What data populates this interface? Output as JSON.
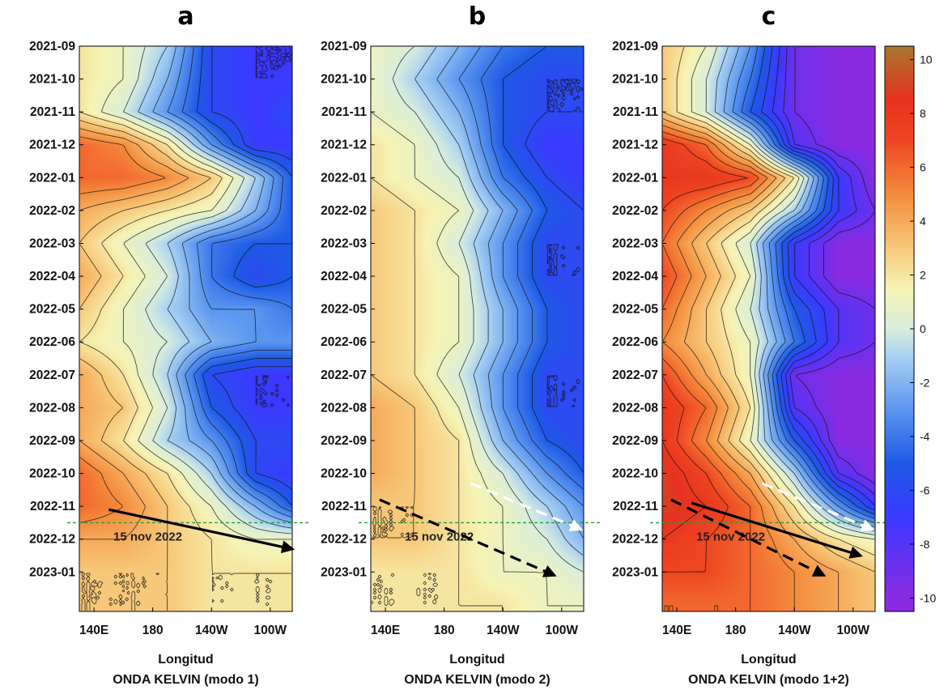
{
  "chart_data": [
    {
      "type": "heatmap",
      "panel_label": "a",
      "title": "ONDA KELVIN (modo 1)",
      "xlabel": "Longitud",
      "x_ticks": [
        "140E",
        "180",
        "140W",
        "100W"
      ],
      "y_ticks": [
        "2021-09",
        "2021-10",
        "2021-11",
        "2021-12",
        "2022-01",
        "2022-02",
        "2022-03",
        "2022-04",
        "2022-05",
        "2022-06",
        "2022-07",
        "2022-08",
        "2022-09",
        "2022-10",
        "2022-11",
        "2022-12",
        "2023-01"
      ],
      "annotation": "15 nov 2022",
      "field": {
        "lons": [
          130,
          160,
          190,
          220,
          250,
          275
        ],
        "times": [
          0,
          1,
          2,
          3,
          4,
          5,
          6,
          7,
          8,
          9,
          10,
          11,
          12,
          13,
          14,
          15,
          16,
          17
        ],
        "values": [
          [
            2,
            1,
            -1,
            -6,
            -7,
            -7
          ],
          [
            2,
            1,
            -2,
            -6,
            -7,
            -7
          ],
          [
            2,
            0,
            -3,
            -6,
            -7,
            -6
          ],
          [
            6,
            5,
            2,
            -3,
            -7,
            -7
          ],
          [
            6,
            6,
            5,
            3,
            -1,
            -5
          ],
          [
            4,
            3,
            2,
            1,
            -2,
            -5
          ],
          [
            3,
            1,
            -1,
            -4,
            -5,
            -5
          ],
          [
            4,
            2,
            0,
            -4,
            -6,
            -5
          ],
          [
            3,
            1,
            -1,
            -3,
            -3,
            -4
          ],
          [
            2,
            1,
            0,
            -2,
            -3,
            -3
          ],
          [
            4,
            2,
            -1,
            -6,
            -7,
            -7
          ],
          [
            4,
            3,
            0,
            -5,
            -7,
            -7
          ],
          [
            4,
            2,
            -1,
            -3,
            -6,
            -6
          ],
          [
            6,
            4,
            2,
            -1,
            -6,
            -7
          ],
          [
            6,
            5,
            3,
            1,
            -2,
            -5
          ],
          [
            4,
            4,
            3,
            2,
            1,
            1
          ],
          [
            3,
            3,
            3,
            2,
            2,
            2
          ],
          [
            3,
            3,
            3,
            2,
            2,
            2
          ]
        ]
      },
      "arrows": [
        {
          "style": "solid",
          "color": "#000000",
          "from": {
            "lon": 150,
            "t": 14.1
          },
          "to": {
            "lon": 275,
            "t": 15.3
          }
        }
      ]
    },
    {
      "type": "heatmap",
      "panel_label": "b",
      "title": "ONDA KELVIN (modo 2)",
      "xlabel": "Longitud",
      "x_ticks": [
        "140E",
        "180",
        "140W",
        "100W"
      ],
      "y_ticks": [
        "2021-09",
        "2021-10",
        "2021-11",
        "2021-12",
        "2022-01",
        "2022-02",
        "2022-03",
        "2022-04",
        "2022-05",
        "2022-06",
        "2022-07",
        "2022-08",
        "2022-09",
        "2022-10",
        "2022-11",
        "2022-12",
        "2023-01"
      ],
      "annotation": "15 nov 2022",
      "field": {
        "lons": [
          130,
          160,
          190,
          220,
          250,
          275
        ],
        "times": [
          0,
          1,
          2,
          3,
          4,
          5,
          6,
          7,
          8,
          9,
          10,
          11,
          12,
          13,
          14,
          15,
          16,
          17
        ],
        "values": [
          [
            1,
            0,
            -2,
            -4,
            -5,
            -5
          ],
          [
            1,
            -1,
            -3,
            -5,
            -6,
            -6
          ],
          [
            1,
            0,
            -2,
            -5,
            -6,
            -6
          ],
          [
            2,
            1,
            -1,
            -5,
            -7,
            -7
          ],
          [
            2,
            1,
            0,
            -4,
            -6,
            -7
          ],
          [
            3,
            2,
            1,
            -2,
            -5,
            -6
          ],
          [
            3,
            2,
            0,
            -3,
            -6,
            -6
          ],
          [
            3,
            2,
            1,
            -3,
            -6,
            -6
          ],
          [
            3,
            2,
            1,
            -2,
            -5,
            -6
          ],
          [
            3,
            2,
            1,
            -2,
            -5,
            -6
          ],
          [
            3,
            2,
            0,
            -3,
            -6,
            -6
          ],
          [
            4,
            3,
            1,
            -3,
            -6,
            -6
          ],
          [
            4,
            3,
            2,
            -2,
            -5,
            -6
          ],
          [
            4,
            3,
            2,
            0,
            -3,
            -5
          ],
          [
            3,
            3,
            2,
            1,
            -1,
            -3
          ],
          [
            3,
            3,
            2,
            1,
            0,
            -2
          ],
          [
            2,
            2,
            2,
            1,
            1,
            0
          ],
          [
            2,
            2,
            2,
            2,
            1,
            1
          ]
        ]
      },
      "arrows": [
        {
          "style": "dashed",
          "color": "#000000",
          "from": {
            "lon": 136,
            "t": 13.8
          },
          "to": {
            "lon": 255,
            "t": 16.1
          }
        },
        {
          "style": "dashed",
          "color": "#ffffff",
          "from": {
            "lon": 198,
            "t": 13.3
          },
          "to": {
            "lon": 273,
            "t": 14.7
          }
        }
      ]
    },
    {
      "type": "heatmap",
      "panel_label": "c",
      "title": "ONDA KELVIN (modo 1+2)",
      "xlabel": "Longitud",
      "x_ticks": [
        "140E",
        "180",
        "140W",
        "100W"
      ],
      "y_ticks": [
        "2021-09",
        "2021-10",
        "2021-11",
        "2021-12",
        "2022-01",
        "2022-02",
        "2022-03",
        "2022-04",
        "2022-05",
        "2022-06",
        "2022-07",
        "2022-08",
        "2022-09",
        "2022-10",
        "2022-11",
        "2022-12",
        "2023-01"
      ],
      "annotation": "15 nov 2022",
      "colorbar": {
        "ticks": [
          10,
          8,
          6,
          4,
          2,
          0,
          -2,
          -4,
          -6,
          -8,
          -10
        ],
        "range": [
          -10.5,
          10.5
        ],
        "stops": [
          {
            "v": -10,
            "c": "#8a2be2"
          },
          {
            "v": -7,
            "c": "#3b39ff"
          },
          {
            "v": -5,
            "c": "#1e5ae6"
          },
          {
            "v": -3,
            "c": "#5a96f0"
          },
          {
            "v": -1,
            "c": "#a9d1f2"
          },
          {
            "v": 0,
            "c": "#d9eedc"
          },
          {
            "v": 1.5,
            "c": "#f6f3b4"
          },
          {
            "v": 3,
            "c": "#f7c879"
          },
          {
            "v": 5,
            "c": "#f48b3c"
          },
          {
            "v": 7,
            "c": "#ef4622"
          },
          {
            "v": 8.5,
            "c": "#e6321f"
          },
          {
            "v": 10.5,
            "c": "#a9762e"
          }
        ]
      },
      "field": {
        "lons": [
          130,
          160,
          190,
          220,
          250,
          275
        ],
        "times": [
          0,
          1,
          2,
          3,
          4,
          5,
          6,
          7,
          8,
          9,
          10,
          11,
          12,
          13,
          14,
          15,
          16,
          17
        ],
        "values": [
          [
            3,
            1,
            -3,
            -9,
            -10,
            -10
          ],
          [
            3,
            0,
            -4,
            -9,
            -10,
            -10
          ],
          [
            3,
            0,
            -5,
            -9,
            -10,
            -10
          ],
          [
            8,
            6,
            1,
            -8,
            -10,
            -10
          ],
          [
            8,
            8,
            7,
            2,
            -7,
            -10
          ],
          [
            7,
            5,
            3,
            -1,
            -7,
            -9
          ],
          [
            6,
            3,
            0,
            -7,
            -10,
            -10
          ],
          [
            7,
            4,
            1,
            -7,
            -10,
            -10
          ],
          [
            6,
            3,
            0,
            -5,
            -8,
            -9
          ],
          [
            5,
            3,
            1,
            -4,
            -8,
            -9
          ],
          [
            7,
            4,
            1,
            -9,
            -10,
            -10
          ],
          [
            8,
            6,
            2,
            -8,
            -10,
            -10
          ],
          [
            8,
            5,
            1,
            -5,
            -10,
            -10
          ],
          [
            9,
            7,
            4,
            -1,
            -8,
            -10
          ],
          [
            9,
            8,
            6,
            2,
            -3,
            -7
          ],
          [
            8,
            7,
            6,
            4,
            2,
            1
          ],
          [
            7,
            7,
            6,
            5,
            4,
            3
          ],
          [
            6,
            6,
            6,
            5,
            4,
            3
          ]
        ]
      },
      "arrows": [
        {
          "style": "dashed",
          "color": "#000000",
          "from": {
            "lon": 136,
            "t": 13.8
          },
          "to": {
            "lon": 240,
            "t": 16.1
          }
        },
        {
          "style": "solid",
          "color": "#000000",
          "from": {
            "lon": 150,
            "t": 13.9
          },
          "to": {
            "lon": 265,
            "t": 15.5
          }
        },
        {
          "style": "dashed",
          "color": "#ffffff",
          "from": {
            "lon": 198,
            "t": 13.3
          },
          "to": {
            "lon": 273,
            "t": 14.7
          }
        }
      ]
    }
  ]
}
